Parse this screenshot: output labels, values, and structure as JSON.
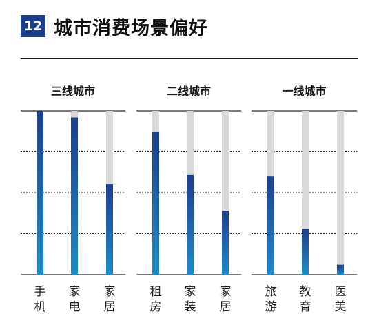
{
  "header": {
    "badge": "12",
    "title": "城市消费场景偏好"
  },
  "colors": {
    "badge": "#1c3f8c",
    "bar_top": "#1d3f8f",
    "bar_bottom": "#1e8bc8",
    "track": "#d9d9d9",
    "text": "#222222",
    "axis": "#2a2a2a"
  },
  "chart_data": {
    "type": "bar",
    "title": "城市消费场景偏好",
    "ylim": [
      0,
      100
    ],
    "panels": [
      {
        "title": "三线城市",
        "categories": [
          "手机",
          "家电",
          "家居"
        ],
        "values": [
          100,
          96,
          55
        ]
      },
      {
        "title": "二线城市",
        "categories": [
          "租房",
          "家装",
          "家居"
        ],
        "values": [
          87,
          61,
          39
        ]
      },
      {
        "title": "一线城市",
        "categories": [
          "旅游",
          "教育",
          "医美"
        ],
        "values": [
          60,
          28,
          6
        ]
      }
    ],
    "grid": "dashed horizontal"
  }
}
